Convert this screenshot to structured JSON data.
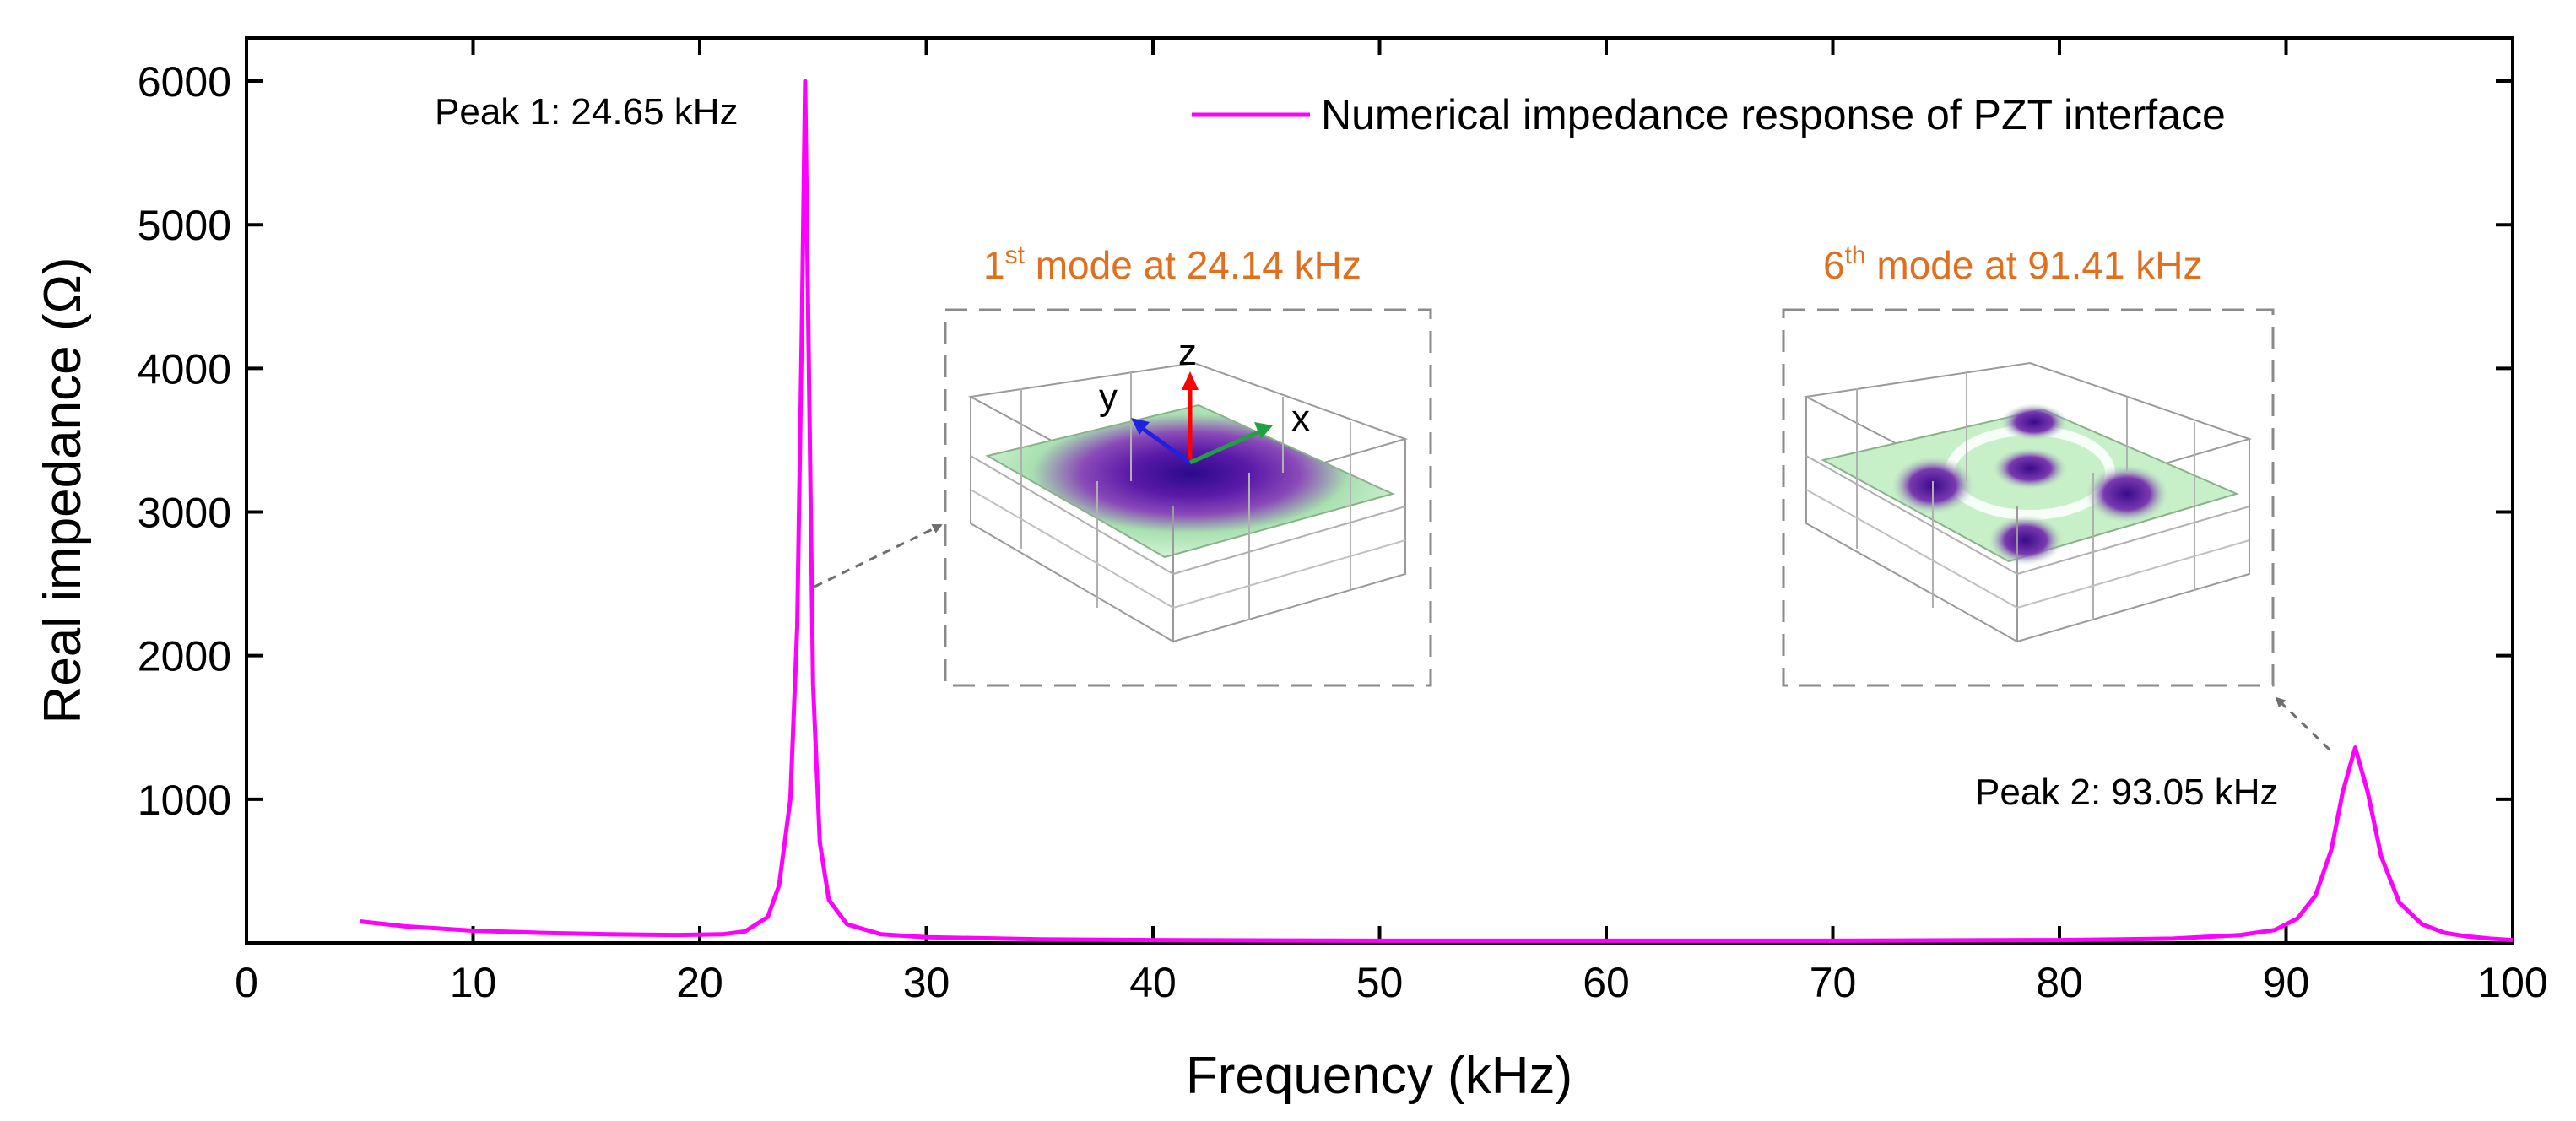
{
  "colors": {
    "series_line": "#ff00ff",
    "inset_title": "#e07020",
    "dashed_box": "#8a8a8a",
    "arrow": "#6e6e6e",
    "axis": "#000000",
    "mode_dark": "#3a0a8a",
    "mode_light": "#d8f5d8"
  },
  "icons": {
    "inset1": "pzt-mode-shape-1-render",
    "inset2": "pzt-mode-shape-6-render"
  },
  "chart_data": {
    "type": "line",
    "title": "",
    "xlabel": "Frequency (kHz)",
    "ylabel": "Real impedance (Ω)",
    "xlim": [
      0,
      100
    ],
    "ylim": [
      0,
      6300
    ],
    "x_ticks": [
      0,
      10,
      20,
      30,
      40,
      50,
      60,
      70,
      80,
      90,
      100
    ],
    "y_ticks": [
      1000,
      2000,
      3000,
      4000,
      5000,
      6000
    ],
    "grid": false,
    "legend": {
      "position": "top-right",
      "entries": [
        "Numerical impedance response of PZT interface"
      ]
    },
    "series": [
      {
        "name": "Numerical impedance response of PZT interface",
        "x": [
          5,
          7,
          10,
          13,
          16,
          19,
          21,
          22,
          23,
          23.5,
          24,
          24.3,
          24.5,
          24.65,
          24.8,
          25,
          25.3,
          25.7,
          26.5,
          28,
          30,
          35,
          40,
          50,
          60,
          70,
          80,
          85,
          88,
          89.5,
          90.5,
          91.3,
          92,
          92.5,
          93.05,
          93.6,
          94.2,
          95,
          96,
          97,
          98,
          99,
          100
        ],
        "y": [
          150,
          115,
          85,
          70,
          60,
          55,
          60,
          80,
          180,
          400,
          1000,
          2200,
          4200,
          6000,
          4200,
          1800,
          700,
          300,
          130,
          60,
          40,
          25,
          20,
          15,
          15,
          15,
          20,
          30,
          55,
          90,
          170,
          330,
          650,
          1050,
          1360,
          1050,
          600,
          280,
          130,
          70,
          45,
          30,
          20
        ]
      }
    ],
    "annotations": [
      {
        "text": "Peak 1: 24.65 kHz",
        "x": 24.65,
        "y": 6000
      },
      {
        "text": "Peak 2: 93.05 kHz",
        "x": 93.05,
        "y": 1360
      }
    ],
    "insets": [
      {
        "title_sup": "st",
        "title_pre": "1",
        "title_post": " mode at 24.14 kHz",
        "axes": [
          "z",
          "y",
          "x"
        ]
      },
      {
        "title_sup": "th",
        "title_pre": "6",
        "title_post": " mode at 91.41 kHz"
      }
    ]
  }
}
